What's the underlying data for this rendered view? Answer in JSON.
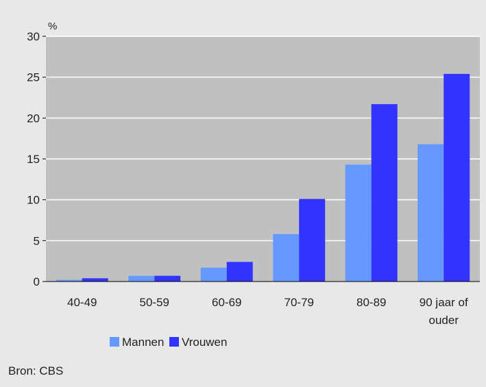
{
  "source": "Bron: CBS",
  "chart_data": {
    "type": "bar",
    "title": "",
    "ylabel": "%",
    "xlabel": "",
    "categories": [
      "40-49",
      "50-59",
      "60-69",
      "70-79",
      "80-89",
      "90 jaar of ouder"
    ],
    "series": [
      {
        "name": "Mannen",
        "values": [
          0.2,
          0.7,
          1.7,
          5.8,
          14.3,
          16.8
        ]
      },
      {
        "name": "Vrouwen",
        "values": [
          0.4,
          0.7,
          2.4,
          10.1,
          21.7,
          25.4
        ]
      }
    ],
    "ylim": [
      0,
      30
    ],
    "yticks": [
      "0",
      "5",
      "10",
      "15",
      "20",
      "25",
      "30"
    ],
    "grid": true,
    "legend_position": "bottom",
    "colors": {
      "Mannen": "#6699ff",
      "Vrouwen": "#3333ff",
      "plot_background": "#c0c0c0",
      "background": "#e8e8e8",
      "grid": "#ffffff"
    }
  }
}
